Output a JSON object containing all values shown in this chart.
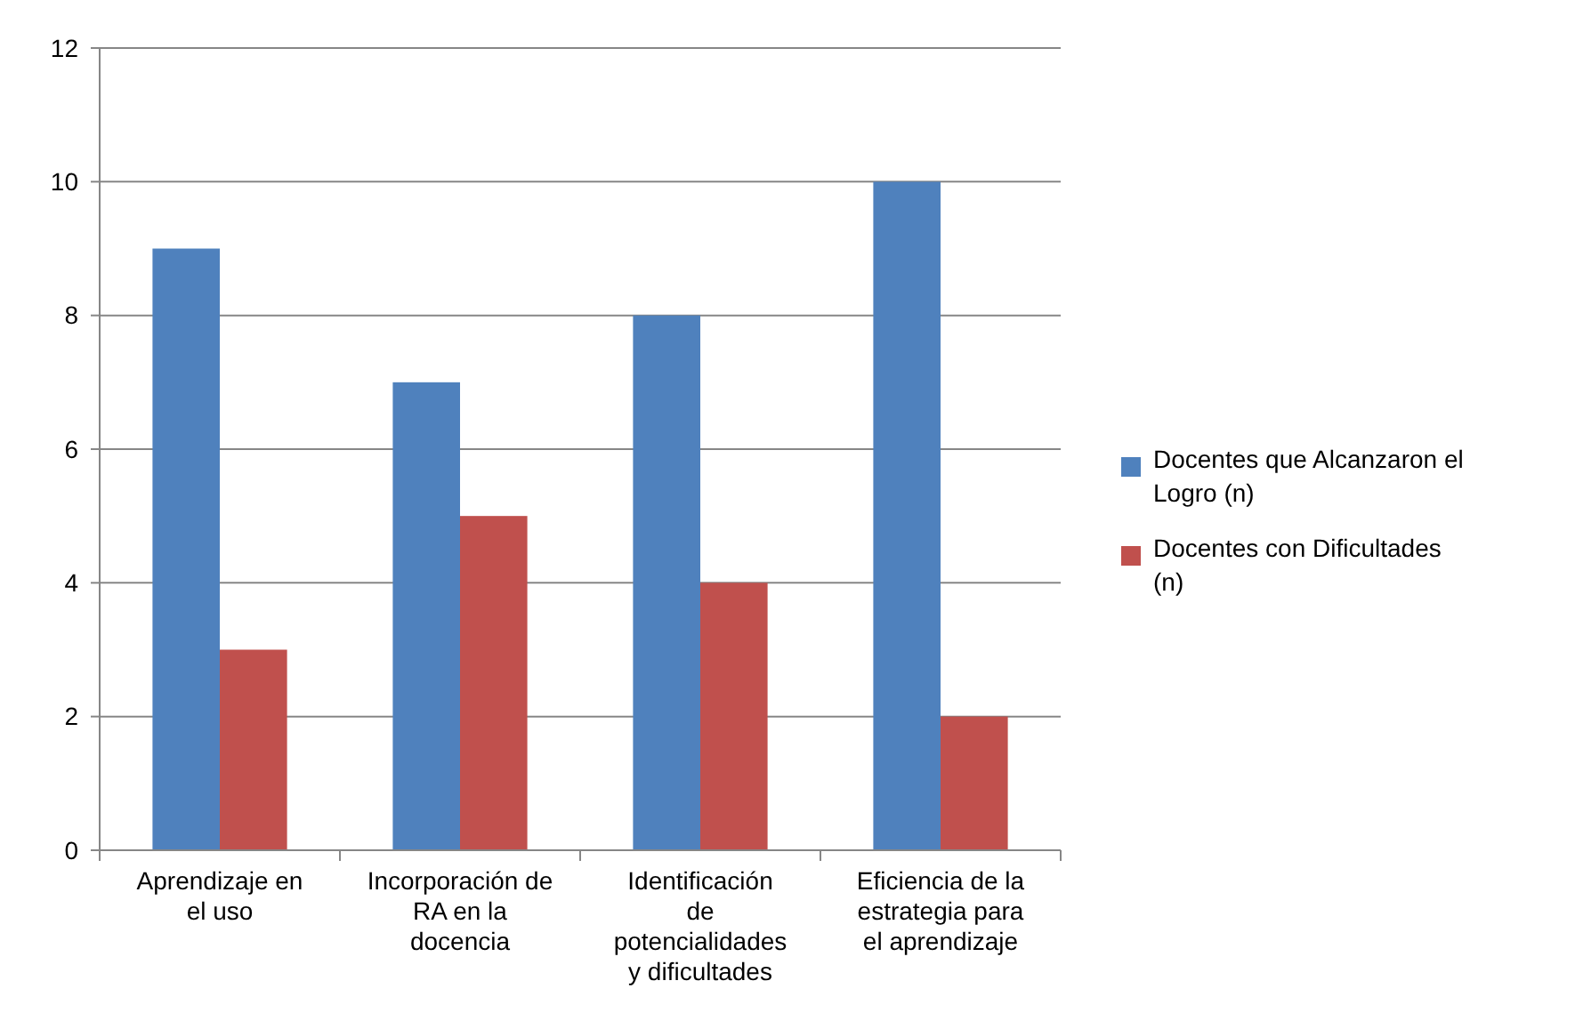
{
  "chart_data": {
    "type": "bar",
    "categories": [
      "Aprendizaje en el uso",
      "Incorporación de RA en la docencia",
      "Identificación de potencialidades y dificultades",
      "Eficiencia de la estrategia para el aprendizaje"
    ],
    "series": [
      {
        "name": "Docentes que Alcanzaron el Logro (n)",
        "color": "#4f81bd",
        "values": [
          9,
          7,
          8,
          10
        ]
      },
      {
        "name": "Docentes con Dificultades (n)",
        "color": "#c0504d",
        "values": [
          3,
          5,
          4,
          2
        ]
      }
    ],
    "ylim": [
      0,
      12
    ],
    "yticks": [
      0,
      2,
      4,
      6,
      8,
      10,
      12
    ],
    "grid": "y",
    "legend": "right"
  }
}
